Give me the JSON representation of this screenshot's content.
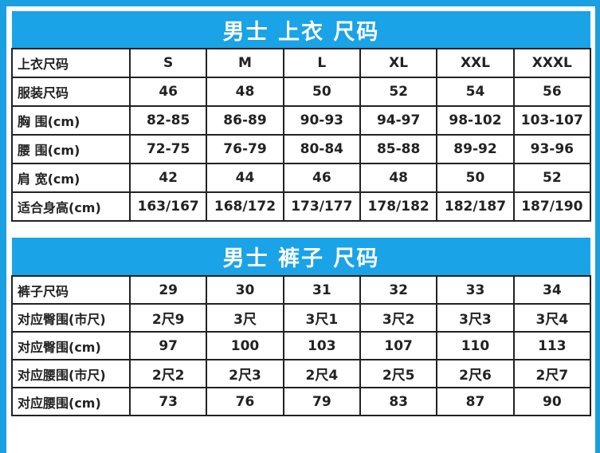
{
  "colors": {
    "accent": "#1aa3e6",
    "border": "#222222"
  },
  "tops": {
    "title": "男士 上衣 尺码",
    "rows": [
      {
        "label": "上衣尺码",
        "values": [
          "S",
          "M",
          "L",
          "XL",
          "XXL",
          "XXXL"
        ]
      },
      {
        "label": "服装尺码",
        "values": [
          "46",
          "48",
          "50",
          "52",
          "54",
          "56"
        ]
      },
      {
        "label": "胸 围(cm)",
        "values": [
          "82-85",
          "86-89",
          "90-93",
          "94-97",
          "98-102",
          "103-107"
        ]
      },
      {
        "label": "腰 围(cm)",
        "values": [
          "72-75",
          "76-79",
          "80-84",
          "85-88",
          "89-92",
          "93-96"
        ]
      },
      {
        "label": "肩 宽(cm)",
        "values": [
          "42",
          "44",
          "46",
          "48",
          "50",
          "52"
        ]
      },
      {
        "label": "适合身高(cm)",
        "values": [
          "163/167",
          "168/172",
          "173/177",
          "178/182",
          "182/187",
          "187/190"
        ]
      }
    ]
  },
  "pants": {
    "title": "男士 裤子 尺码",
    "rows": [
      {
        "label": "裤子尺码",
        "values": [
          "29",
          "30",
          "31",
          "32",
          "33",
          "34"
        ]
      },
      {
        "label": "对应臀围(市尺)",
        "values": [
          "2尺9",
          "3尺",
          "3尺1",
          "3尺2",
          "3尺3",
          "3尺4"
        ]
      },
      {
        "label": "对应臀围(cm)",
        "values": [
          "97",
          "100",
          "103",
          "107",
          "110",
          "113"
        ]
      },
      {
        "label": "对应腰围(市尺)",
        "values": [
          "2尺2",
          "2尺3",
          "2尺4",
          "2尺5",
          "2尺6",
          "2尺7"
        ]
      },
      {
        "label": "对应腰围(cm)",
        "values": [
          "73",
          "76",
          "79",
          "83",
          "87",
          "90"
        ]
      }
    ]
  }
}
